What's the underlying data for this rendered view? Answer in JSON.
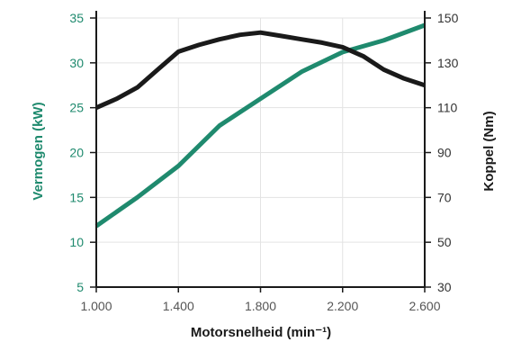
{
  "chart_data": {
    "type": "line",
    "title": "",
    "xlabel": "Motorsnelheid (min⁻¹)",
    "xlim": [
      1000,
      2600
    ],
    "x_ticks": [
      1000,
      1400,
      1800,
      2200,
      2600
    ],
    "x_tick_labels": [
      "1.000",
      "1.400",
      "1.800",
      "2.200",
      "2.600"
    ],
    "left_axis": {
      "label": "Vermogen (kW)",
      "color": "#1f8a6e",
      "ylim": [
        5,
        35
      ],
      "ticks": [
        5,
        10,
        15,
        20,
        25,
        30,
        35
      ]
    },
    "right_axis": {
      "label": "Koppel (Nm)",
      "color": "#1a1a1a",
      "ylim": [
        30,
        150
      ],
      "ticks": [
        30,
        50,
        70,
        90,
        110,
        130,
        150
      ]
    },
    "grid": true,
    "series": [
      {
        "name": "",
        "axis": "left",
        "color": "#1f8a6e",
        "x": [
          1000,
          1200,
          1400,
          1600,
          1800,
          2000,
          2200,
          2400,
          2600
        ],
        "values": [
          11.8,
          15.0,
          18.5,
          23.0,
          26.0,
          29.0,
          31.2,
          32.5,
          34.2
        ]
      },
      {
        "name": "",
        "axis": "right",
        "color": "#1a1a1a",
        "x": [
          1000,
          1100,
          1200,
          1300,
          1400,
          1500,
          1600,
          1700,
          1800,
          1900,
          2000,
          2100,
          2200,
          2300,
          2400,
          2500,
          2600
        ],
        "values": [
          110.0,
          114.0,
          119.0,
          127.0,
          135.0,
          138.0,
          140.5,
          142.5,
          143.5,
          142.0,
          140.5,
          139.0,
          137.0,
          133.0,
          127.0,
          123.0,
          120.0
        ]
      }
    ]
  }
}
